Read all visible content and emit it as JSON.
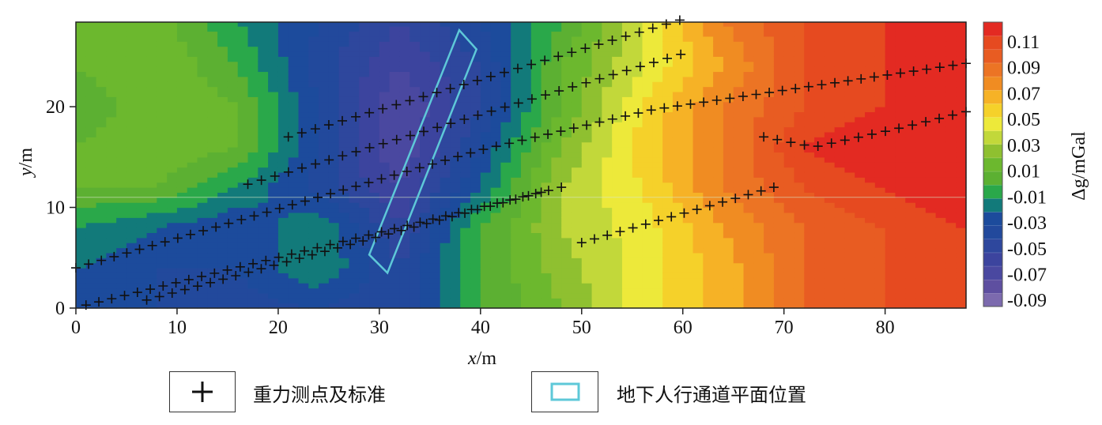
{
  "chart_data": {
    "type": "heatmap",
    "subtype": "filled-contour",
    "xlabel_italic": "x",
    "xlabel_unit": "/m",
    "ylabel_italic": "y",
    "ylabel_unit": "/m",
    "xlim": [
      0,
      88
    ],
    "ylim": [
      0,
      28.4
    ],
    "xticks": [
      0,
      10,
      20,
      30,
      40,
      50,
      60,
      70,
      80
    ],
    "yticks": [
      0,
      10,
      20
    ],
    "colorbar": {
      "label": "Δg/mGal",
      "range": [
        -0.1,
        0.12
      ],
      "step": 0.01,
      "ticks": [
        "0.11",
        "0.09",
        "0.07",
        "0.05",
        "0.03",
        "0.01",
        "-0.01",
        "-0.03",
        "-0.05",
        "-0.07",
        "-0.09"
      ],
      "tick_values": [
        0.11,
        0.09,
        0.07,
        0.05,
        0.03,
        0.01,
        -0.01,
        -0.03,
        -0.05,
        -0.07,
        -0.09
      ],
      "band_colors": [
        "#7c6aae",
        "#5e4fa0",
        "#4a48a0",
        "#3c449e",
        "#2e479d",
        "#22499c",
        "#1c4b9c",
        "#127a7a",
        "#2aa84a",
        "#5cb032",
        "#6cb82e",
        "#8fc030",
        "#c2d83a",
        "#ede93a",
        "#f5d12a",
        "#f6b226",
        "#f08c22",
        "#ec7424",
        "#e85c22",
        "#e64a20",
        "#e32a22"
      ]
    },
    "grid": {
      "x": [
        0,
        8,
        16,
        24,
        32,
        40,
        48,
        56,
        64,
        72,
        80,
        88
      ],
      "y": [
        0,
        4,
        8,
        12,
        16,
        20,
        24,
        28.4
      ],
      "values": [
        [
          -0.03,
          -0.04,
          -0.045,
          -0.04,
          -0.05,
          -0.01,
          0.01,
          0.035,
          0.055,
          0.08,
          0.09,
          0.1
        ],
        [
          -0.03,
          -0.04,
          -0.04,
          -0.02,
          -0.05,
          -0.01,
          0.015,
          0.035,
          0.055,
          0.08,
          0.09,
          0.1
        ],
        [
          -0.02,
          -0.03,
          -0.04,
          -0.02,
          -0.06,
          -0.01,
          0.02,
          0.035,
          0.06,
          0.08,
          0.09,
          0.1
        ],
        [
          0.0,
          0.0,
          -0.02,
          -0.045,
          -0.07,
          -0.03,
          0.02,
          0.04,
          0.07,
          0.09,
          0.1,
          0.11
        ],
        [
          0.0,
          0.01,
          0.0,
          -0.04,
          -0.08,
          -0.04,
          0.01,
          0.045,
          0.07,
          0.1,
          0.11,
          0.11
        ],
        [
          -0.01,
          0.01,
          0.0,
          -0.04,
          -0.08,
          -0.05,
          0.0,
          0.04,
          0.07,
          0.09,
          0.1,
          0.11
        ],
        [
          0.0,
          0.01,
          -0.01,
          -0.045,
          -0.07,
          -0.05,
          0.0,
          0.03,
          0.06,
          0.09,
          0.1,
          0.11
        ],
        [
          0.0,
          0.005,
          -0.02,
          -0.04,
          -0.06,
          -0.04,
          -0.01,
          0.03,
          0.07,
          0.09,
          0.1,
          0.11
        ]
      ]
    },
    "survey_lines": [
      {
        "path": [
          [
            21,
            17
          ],
          [
            59.7,
            28.6
          ]
        ],
        "points": 30
      },
      {
        "path": [
          [
            17,
            12.3
          ],
          [
            59.8,
            25.2
          ]
        ],
        "points": 33
      },
      {
        "path": [
          [
            0,
            4
          ],
          [
            40,
            15.7
          ],
          [
            57,
            19.7
          ],
          [
            88,
            24.3
          ]
        ],
        "points": 70
      },
      {
        "path": [
          [
            1,
            0.3
          ],
          [
            48,
            12
          ]
        ],
        "points": 38
      },
      {
        "path": [
          [
            7,
            0.8
          ],
          [
            46,
            11.5
          ]
        ],
        "points": 32
      },
      {
        "path": [
          [
            50,
            6.5
          ],
          [
            69,
            12
          ]
        ],
        "points": 16
      },
      {
        "path": [
          [
            68,
            17
          ],
          [
            73,
            16
          ],
          [
            82,
            18
          ],
          [
            88,
            19.5
          ]
        ],
        "points": 16
      }
    ],
    "tunnel_outline": [
      [
        29,
        5.3
      ],
      [
        30.8,
        3.5
      ],
      [
        39.6,
        25.7
      ],
      [
        37.9,
        27.6
      ]
    ],
    "legend": {
      "points_label": "重力测点及标准",
      "tunnel_label": "地下人行通道平面位置"
    },
    "colors": {
      "tunnel": "#5ec8d8",
      "marker": "#111111"
    }
  }
}
